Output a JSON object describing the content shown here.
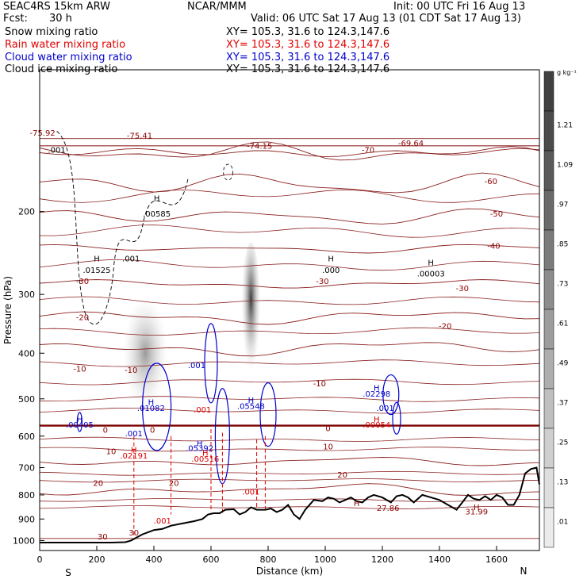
{
  "header": {
    "model": "SEAC4RS 15km ARW",
    "org": "NCAR/MMM",
    "init": "Init: 00 UTC Fri 16 Aug 13",
    "fcst_label": "Fcst:",
    "fcst_value": "30 h",
    "valid": "Valid: 06 UTC Sat 17 Aug 13 (01 CDT Sat 17 Aug 13)"
  },
  "fields": [
    {
      "name": "Snow mixing ratio",
      "xy": "XY= 105.3, 31.6 to 124.3,147.6",
      "color": "#000000"
    },
    {
      "name": "Rain water mixing ratio",
      "xy": "XY= 105.3, 31.6 to 124.3,147.6",
      "color": "#e00000"
    },
    {
      "name": "Cloud water mixing ratio",
      "xy": "XY= 105.3, 31.6 to 124.3,147.6",
      "color": "#0000cc"
    },
    {
      "name": "Cloud ice mixing ratio",
      "xy": "XY= 105.3, 31.6 to 124.3,147.6",
      "color": "#000000"
    }
  ],
  "chart_data": {
    "type": "cross-section",
    "xlabel": "Distance (km)",
    "ylabel": "Pressure (hPa)",
    "xlim": [
      0,
      1750
    ],
    "ylim": [
      1050,
      100
    ],
    "y_scale": "log",
    "x_ticks": [
      0,
      200,
      400,
      600,
      800,
      1000,
      1200,
      1400,
      1600
    ],
    "y_ticks": [
      200,
      300,
      400,
      500,
      600,
      700,
      800,
      900,
      1000
    ],
    "end_labels": {
      "left": "S",
      "right": "N"
    },
    "colorbar": {
      "unit": "g kg⁻¹",
      "ticks": [
        "1.21",
        "1.09",
        ".97",
        ".85",
        ".73",
        ".61",
        ".49",
        ".37",
        ".25",
        ".13",
        ".01"
      ],
      "colors": [
        "#404040",
        "#4b4b4b",
        "#5a5a5a",
        "#6a6a6a",
        "#7b7b7b",
        "#8c8c8c",
        "#9d9d9d",
        "#aeaeae",
        "#bfbfbf",
        "#cfcfcf",
        "#dedede",
        "#ebebeb"
      ]
    },
    "terrain": {
      "x": [
        0,
        120,
        250,
        300,
        320,
        340,
        360,
        380,
        400,
        430,
        460,
        500,
        540,
        570,
        590,
        610,
        630,
        650,
        680,
        700,
        720,
        740,
        760,
        790,
        810,
        830,
        850,
        870,
        890,
        910,
        930,
        960,
        990,
        1010,
        1030,
        1050,
        1070,
        1090,
        1110,
        1130,
        1150,
        1170,
        1200,
        1230,
        1250,
        1270,
        1290,
        1310,
        1340,
        1370,
        1400,
        1430,
        1460,
        1480,
        1500,
        1520,
        1540,
        1560,
        1580,
        1600,
        1620,
        1640,
        1660,
        1680,
        1700,
        1720,
        1740,
        1750
      ],
      "p": [
        1010,
        1010,
        1010,
        1008,
        1000,
        985,
        970,
        960,
        950,
        945,
        930,
        920,
        910,
        900,
        880,
        875,
        875,
        860,
        858,
        880,
        870,
        850,
        860,
        860,
        855,
        870,
        860,
        840,
        880,
        900,
        860,
        820,
        825,
        810,
        815,
        830,
        820,
        810,
        825,
        830,
        810,
        800,
        810,
        830,
        805,
        800,
        810,
        830,
        800,
        810,
        820,
        840,
        860,
        830,
        800,
        815,
        820,
        805,
        820,
        800,
        810,
        840,
        840,
        800,
        720,
        705,
        700,
        760
      ],
      "labels": [
        {
          "x": 1220,
          "p": 865,
          "text": "27.86"
        },
        {
          "x": 1530,
          "p": 880,
          "text": "31.99"
        }
      ]
    },
    "temperature_contours": [
      {
        "label": "-75.92",
        "p0": 150,
        "dp": [
          0,
          2,
          -1,
          0
        ]
      },
      {
        "label": "-75.41",
        "p0": 140,
        "dp": [
          0,
          0,
          0,
          0
        ]
      },
      {
        "label": "-74.15",
        "p0": 145,
        "dp": [
          0,
          0,
          0,
          0
        ]
      },
      {
        "label": "-70",
        "p0": 150,
        "dp": [
          0,
          -3,
          1,
          -4
        ]
      },
      {
        "label": "-69.64",
        "p0": 145,
        "dp": [
          0,
          0,
          0,
          0
        ]
      },
      {
        "label": "-60",
        "p0": 175,
        "dp": [
          0,
          -3,
          2,
          -6
        ]
      },
      {
        "label": "-50",
        "p0": 205,
        "dp": [
          0,
          -2,
          2,
          -5
        ]
      },
      {
        "label": "-40",
        "p0": 240,
        "dp": [
          0,
          -1,
          2,
          -3
        ]
      },
      {
        "label": "-30",
        "p0": 285,
        "dp": [
          0,
          2,
          4,
          0
        ]
      },
      {
        "label": "-20",
        "p0": 335,
        "dp": [
          0,
          4,
          6,
          3
        ]
      },
      {
        "label": "-10",
        "p0": 390,
        "dp": [
          0,
          5,
          8,
          4
        ]
      },
      {
        "label": "0",
        "p0": 570,
        "dp": [
          0,
          0,
          0,
          0
        ]
      },
      {
        "label": "10",
        "p0": 680,
        "dp": [
          0,
          4,
          8,
          6
        ]
      },
      {
        "label": "20",
        "p0": 780,
        "dp": [
          0,
          6,
          12,
          10
        ]
      },
      {
        "label": "30",
        "p0": 990,
        "dp": [
          0,
          0,
          0,
          0
        ]
      }
    ],
    "maxima_labels": [
      {
        "text": "-75.92",
        "x": 10,
        "p": 138,
        "color": "#8b0000"
      },
      {
        "text": ".001",
        "x": 60,
        "p": 150,
        "color": "#000000"
      },
      {
        "text": "-75.41",
        "x": 350,
        "p": 140,
        "color": "#8b0000"
      },
      {
        "text": "-74.15",
        "x": 770,
        "p": 147,
        "color": "#8b0000"
      },
      {
        "text": "-70",
        "x": 1150,
        "p": 150,
        "color": "#8b0000"
      },
      {
        "text": "-69.64",
        "x": 1300,
        "p": 145,
        "color": "#8b0000"
      },
      {
        "text": "-60",
        "x": 1580,
        "p": 175,
        "color": "#8b0000"
      },
      {
        "text": "-50",
        "x": 1600,
        "p": 205,
        "color": "#8b0000"
      },
      {
        "text": "-40",
        "x": 1590,
        "p": 240,
        "color": "#8b0000"
      },
      {
        "text": "-30",
        "x": 150,
        "p": 285,
        "color": "#8b0000"
      },
      {
        "text": "-30",
        "x": 990,
        "p": 285,
        "color": "#8b0000"
      },
      {
        "text": "-30",
        "x": 1480,
        "p": 295,
        "color": "#8b0000"
      },
      {
        "text": "-20",
        "x": 150,
        "p": 340,
        "color": "#8b0000"
      },
      {
        "text": "-20",
        "x": 1420,
        "p": 355,
        "color": "#8b0000"
      },
      {
        "text": "-10",
        "x": 140,
        "p": 438,
        "color": "#8b0000"
      },
      {
        "text": "-10",
        "x": 320,
        "p": 440,
        "color": "#8b0000"
      },
      {
        "text": "-10",
        "x": 980,
        "p": 470,
        "color": "#8b0000"
      },
      {
        "text": "0",
        "x": 230,
        "p": 590,
        "color": "#8b0000"
      },
      {
        "text": "0",
        "x": 395,
        "p": 590,
        "color": "#8b0000"
      },
      {
        "text": "0",
        "x": 1010,
        "p": 585,
        "color": "#8b0000"
      },
      {
        "text": "10",
        "x": 250,
        "p": 655,
        "color": "#8b0000"
      },
      {
        "text": "10",
        "x": 1010,
        "p": 640,
        "color": "#8b0000"
      },
      {
        "text": "20",
        "x": 205,
        "p": 765,
        "color": "#8b0000"
      },
      {
        "text": "20",
        "x": 470,
        "p": 765,
        "color": "#8b0000"
      },
      {
        "text": "20",
        "x": 1060,
        "p": 735,
        "color": "#8b0000"
      },
      {
        "text": "30",
        "x": 220,
        "p": 995,
        "color": "#8b0000"
      },
      {
        "text": "30",
        "x": 330,
        "p": 975,
        "color": "#8b0000"
      },
      {
        "text": "H",
        "x": 410,
        "p": 190,
        "color": "#000000"
      },
      {
        "text": ".00585",
        "x": 410,
        "p": 205,
        "color": "#000000"
      },
      {
        "text": "H",
        "x": 200,
        "p": 255,
        "color": "#000000"
      },
      {
        "text": ".01525",
        "x": 200,
        "p": 270,
        "color": "#000000"
      },
      {
        "text": ".001",
        "x": 320,
        "p": 255,
        "color": "#000000"
      },
      {
        "text": "H",
        "x": 1020,
        "p": 255,
        "color": "#000000"
      },
      {
        "text": ".000",
        "x": 1020,
        "p": 270,
        "color": "#000000"
      },
      {
        "text": "H",
        "x": 1370,
        "p": 260,
        "color": "#000000"
      },
      {
        "text": ".00003",
        "x": 1370,
        "p": 275,
        "color": "#000000"
      },
      {
        "text": ".001",
        "x": 550,
        "p": 430,
        "color": "#0000cc"
      },
      {
        "text": "H",
        "x": 390,
        "p": 515,
        "color": "#0000cc"
      },
      {
        "text": ".01082",
        "x": 390,
        "p": 530,
        "color": "#0000cc"
      },
      {
        "text": "H",
        "x": 140,
        "p": 560,
        "color": "#0000cc"
      },
      {
        "text": ".00405",
        "x": 140,
        "p": 575,
        "color": "#0000cc"
      },
      {
        "text": ".001",
        "x": 330,
        "p": 600,
        "color": "#0000cc"
      },
      {
        "text": ".001",
        "x": 570,
        "p": 535,
        "color": "#e00000"
      },
      {
        "text": "H",
        "x": 740,
        "p": 510,
        "color": "#0000cc"
      },
      {
        "text": ".05548",
        "x": 740,
        "p": 525,
        "color": "#0000cc"
      },
      {
        "text": "H",
        "x": 560,
        "p": 630,
        "color": "#0000cc"
      },
      {
        "text": ".05392",
        "x": 560,
        "p": 645,
        "color": "#0000cc"
      },
      {
        "text": "H",
        "x": 1180,
        "p": 480,
        "color": "#0000cc"
      },
      {
        "text": ".02298",
        "x": 1180,
        "p": 495,
        "color": "#0000cc"
      },
      {
        "text": ".001",
        "x": 1210,
        "p": 530,
        "color": "#0000cc"
      },
      {
        "text": "H",
        "x": 1180,
        "p": 560,
        "color": "#e00000"
      },
      {
        "text": ".00054",
        "x": 1180,
        "p": 575,
        "color": "#e00000"
      },
      {
        "text": "H",
        "x": 330,
        "p": 650,
        "color": "#e00000"
      },
      {
        "text": ".02191",
        "x": 330,
        "p": 670,
        "color": "#e00000"
      },
      {
        "text": "H",
        "x": 580,
        "p": 660,
        "color": "#e00000"
      },
      {
        "text": ".00516",
        "x": 580,
        "p": 680,
        "color": "#e00000"
      },
      {
        "text": ".001",
        "x": 430,
        "p": 920,
        "color": "#e00000"
      },
      {
        "text": ".001",
        "x": 740,
        "p": 798,
        "color": "#e00000"
      },
      {
        "text": "H",
        "x": 1110,
        "p": 845,
        "color": "#8b0000"
      },
      {
        "text": "H",
        "x": 1530,
        "p": 862,
        "color": "#8b0000"
      }
    ]
  }
}
